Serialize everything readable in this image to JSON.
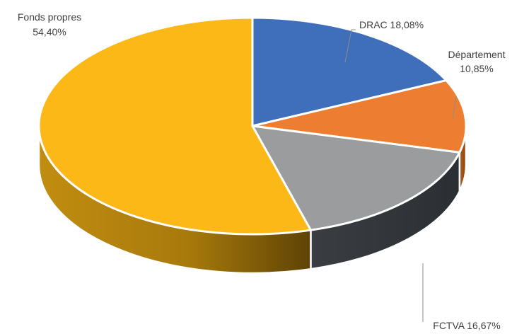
{
  "chart_data": {
    "type": "pie",
    "style": "3d",
    "title": "",
    "series": [
      {
        "name": "DRAC",
        "value": 18.08,
        "label": "DRAC 18,08%",
        "color": "#3f6fba"
      },
      {
        "name": "Département",
        "value": 10.85,
        "label_name": "Département",
        "label_value": "10,85%",
        "color": "#ed7d31"
      },
      {
        "name": "FCTVA",
        "value": 16.67,
        "label": "FCTVA 16,67%",
        "color": "#9a9c9e"
      },
      {
        "name": "Fonds propres",
        "value": 54.4,
        "label_name": "Fonds propres",
        "label_value": "54,40%",
        "color": "#fbb817"
      }
    ]
  }
}
